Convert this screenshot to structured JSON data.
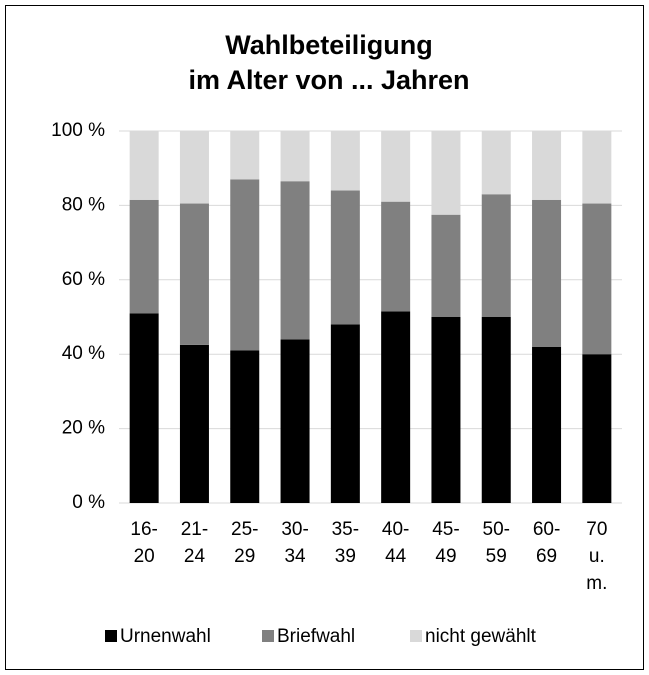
{
  "chart_data": {
    "type": "stacked_bar",
    "title": [
      "Wahlbeteiligung",
      "im Alter von ... Jahren"
    ],
    "categories": [
      [
        "16-",
        "20"
      ],
      [
        "21-",
        "24"
      ],
      [
        "25-",
        "29"
      ],
      [
        "30-",
        "34"
      ],
      [
        "35-",
        "39"
      ],
      [
        "40-",
        "44"
      ],
      [
        "45-",
        "49"
      ],
      [
        "50-",
        "59"
      ],
      [
        "60-",
        "69"
      ],
      [
        "70",
        "u.",
        "m."
      ]
    ],
    "series": [
      {
        "name": "Urnenwahl",
        "color": "#000000",
        "values": [
          51,
          42.5,
          41,
          44,
          48,
          51.5,
          50,
          50,
          42,
          40
        ]
      },
      {
        "name": "Briefwahl",
        "color": "#808080",
        "values": [
          30.5,
          38,
          46,
          42.5,
          36,
          29.5,
          27.5,
          33,
          39.5,
          40.5
        ]
      },
      {
        "name": "nicht gewählt",
        "color": "#d9d9d9",
        "values": [
          18.5,
          19.5,
          13,
          13.5,
          16,
          19,
          22.5,
          17,
          18.5,
          19.5
        ]
      }
    ],
    "ylim": [
      0,
      100
    ],
    "yticks": [
      {
        "value": 0,
        "label": "0 %"
      },
      {
        "value": 20,
        "label": "20 %"
      },
      {
        "value": 40,
        "label": "40 %"
      },
      {
        "value": 60,
        "label": "60 %"
      },
      {
        "value": 80,
        "label": "80 %"
      },
      {
        "value": 100,
        "label": "100 %"
      }
    ],
    "grid": true,
    "legend": "bottom"
  }
}
